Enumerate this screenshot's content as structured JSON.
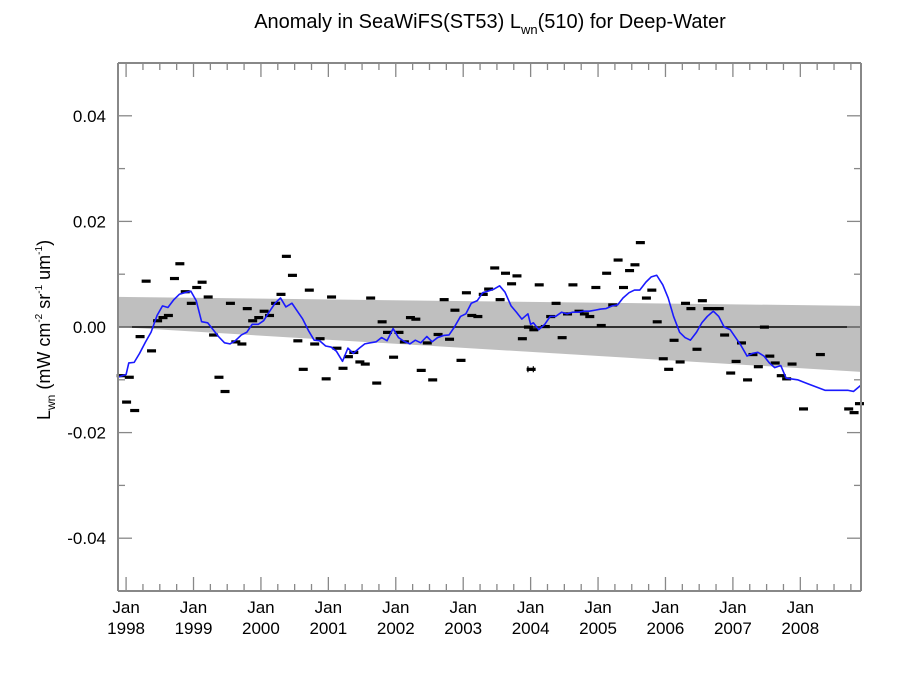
{
  "chart_data": {
    "type": "scatter",
    "title": {
      "prefix": "Anomaly in SeaWiFS(ST53) L",
      "sub": "wn",
      "suffix": "(510) for Deep-Water"
    },
    "ylabel": {
      "prefix": "L",
      "sub": "wn",
      "unit": " (mW cm",
      "sup1": "-2",
      "mid": " sr",
      "sup2": "-1",
      "mid2": " um",
      "sup3": "-1",
      "end": ")"
    },
    "xlabel": "",
    "xlim": [
      1997.88,
      2008.9
    ],
    "ylim": [
      -0.05,
      0.05
    ],
    "grid": false,
    "y_ticks": [
      {
        "value": 0.04,
        "label": "0.04"
      },
      {
        "value": 0.02,
        "label": "0.02"
      },
      {
        "value": 0.0,
        "label": "0.00"
      },
      {
        "value": -0.02,
        "label": "-0.02"
      },
      {
        "value": -0.04,
        "label": "-0.04"
      }
    ],
    "x_ticks": [
      {
        "value": 1998,
        "label1": "Jan",
        "label2": "1998"
      },
      {
        "value": 1999,
        "label1": "Jan",
        "label2": "1999"
      },
      {
        "value": 2000,
        "label1": "Jan",
        "label2": "2000"
      },
      {
        "value": 2001,
        "label1": "Jan",
        "label2": "2001"
      },
      {
        "value": 2002,
        "label1": "Jan",
        "label2": "2002"
      },
      {
        "value": 2003,
        "label1": "Jan",
        "label2": "2003"
      },
      {
        "value": 2004,
        "label1": "Jan",
        "label2": "2004"
      },
      {
        "value": 2005,
        "label1": "Jan",
        "label2": "2005"
      },
      {
        "value": 2006,
        "label1": "Jan",
        "label2": "2006"
      },
      {
        "value": 2007,
        "label1": "Jan",
        "label2": "2007"
      },
      {
        "value": 2008,
        "label1": "Jan",
        "label2": "2008"
      }
    ],
    "zero_line": 0.0,
    "trend_band": {
      "x": [
        1997.88,
        2008.9
      ],
      "upper": [
        0.0057,
        0.004
      ],
      "lower": [
        0.0,
        -0.0085
      ],
      "color": "#bfbfbf"
    },
    "series": [
      {
        "name": "monthly anomaly",
        "marker": "dash",
        "color": "#000000",
        "points": [
          [
            1997.92,
            -0.0092
          ],
          [
            1998.0,
            -0.0142
          ],
          [
            1998.04,
            -0.0095
          ],
          [
            1998.12,
            -0.0158
          ],
          [
            1998.2,
            -0.0018
          ],
          [
            1998.29,
            0.0087
          ],
          [
            1998.37,
            -0.0045
          ],
          [
            1998.46,
            0.0012
          ],
          [
            1998.54,
            0.0018
          ],
          [
            1998.62,
            0.0022
          ],
          [
            1998.71,
            0.0092
          ],
          [
            1998.79,
            0.012
          ],
          [
            1998.87,
            0.0067
          ],
          [
            1998.96,
            0.0045
          ],
          [
            1999.04,
            0.0075
          ],
          [
            1999.12,
            0.0085
          ],
          [
            1999.21,
            0.0057
          ],
          [
            1999.29,
            -0.0015
          ],
          [
            1999.37,
            -0.0095
          ],
          [
            1999.46,
            -0.0122
          ],
          [
            1999.54,
            0.0045
          ],
          [
            1999.62,
            -0.0028
          ],
          [
            1999.71,
            -0.0032
          ],
          [
            1999.79,
            0.0035
          ],
          [
            1999.87,
            0.0012
          ],
          [
            1999.96,
            0.0018
          ],
          [
            2000.04,
            0.003
          ],
          [
            2000.12,
            0.0022
          ],
          [
            2000.21,
            0.0045
          ],
          [
            2000.29,
            0.0062
          ],
          [
            2000.37,
            0.0134
          ],
          [
            2000.46,
            0.0098
          ],
          [
            2000.54,
            -0.0026
          ],
          [
            2000.62,
            -0.008
          ],
          [
            2000.71,
            0.007
          ],
          [
            2000.79,
            -0.0032
          ],
          [
            2000.87,
            -0.0022
          ],
          [
            2000.96,
            -0.0098
          ],
          [
            2001.04,
            0.0057
          ],
          [
            2001.12,
            -0.004
          ],
          [
            2001.21,
            -0.0078
          ],
          [
            2001.29,
            -0.0056
          ],
          [
            2001.37,
            -0.0048
          ],
          [
            2001.46,
            -0.0066
          ],
          [
            2001.54,
            -0.007
          ],
          [
            2001.62,
            0.0055
          ],
          [
            2001.71,
            -0.0106
          ],
          [
            2001.79,
            0.001
          ],
          [
            2001.87,
            -0.001
          ],
          [
            2001.96,
            -0.0057
          ],
          [
            2002.04,
            -0.001
          ],
          [
            2002.12,
            -0.0028
          ],
          [
            2002.21,
            0.0018
          ],
          [
            2002.29,
            0.0015
          ],
          [
            2002.37,
            -0.0082
          ],
          [
            2002.46,
            -0.003
          ],
          [
            2002.54,
            -0.01
          ],
          [
            2002.62,
            -0.0014
          ],
          [
            2002.71,
            0.0052
          ],
          [
            2002.79,
            -0.0023
          ],
          [
            2002.87,
            0.0032
          ],
          [
            2002.96,
            -0.0063
          ],
          [
            2003.04,
            0.0065
          ],
          [
            2003.12,
            0.0022
          ],
          [
            2003.21,
            0.002
          ],
          [
            2003.29,
            0.0062
          ],
          [
            2003.37,
            0.0072
          ],
          [
            2003.46,
            0.0112
          ],
          [
            2003.54,
            0.0052
          ],
          [
            2003.62,
            0.0102
          ],
          [
            2003.71,
            0.0082
          ],
          [
            2003.79,
            0.0097
          ],
          [
            2003.87,
            -0.0022
          ],
          [
            2003.96,
            0.0
          ],
          [
            2004.0,
            -0.008
          ],
          [
            2004.04,
            -0.0005
          ],
          [
            2004.12,
            0.008
          ],
          [
            2004.21,
            0.0001
          ],
          [
            2004.29,
            0.002
          ],
          [
            2004.37,
            0.0045
          ],
          [
            2004.46,
            -0.002
          ],
          [
            2004.54,
            0.0025
          ],
          [
            2004.62,
            0.008
          ],
          [
            2004.71,
            0.003
          ],
          [
            2004.79,
            0.0025
          ],
          [
            2004.87,
            0.002
          ],
          [
            2004.96,
            0.0075
          ],
          [
            2005.04,
            0.0003
          ],
          [
            2005.12,
            0.0102
          ],
          [
            2005.21,
            0.0042
          ],
          [
            2005.29,
            0.0127
          ],
          [
            2005.37,
            0.0075
          ],
          [
            2005.46,
            0.0107
          ],
          [
            2005.54,
            0.0118
          ],
          [
            2005.62,
            0.016
          ],
          [
            2005.71,
            0.0055
          ],
          [
            2005.79,
            0.007
          ],
          [
            2005.87,
            0.001
          ],
          [
            2005.96,
            -0.006
          ],
          [
            2006.04,
            -0.008
          ],
          [
            2006.12,
            -0.0025
          ],
          [
            2006.21,
            -0.0066
          ],
          [
            2006.29,
            0.0045
          ],
          [
            2006.37,
            0.0035
          ],
          [
            2006.46,
            -0.0042
          ],
          [
            2006.54,
            0.005
          ],
          [
            2006.62,
            0.0035
          ],
          [
            2006.71,
            0.0035
          ],
          [
            2006.79,
            0.0035
          ],
          [
            2006.87,
            -0.0015
          ],
          [
            2006.96,
            -0.0087
          ],
          [
            2007.04,
            -0.0065
          ],
          [
            2007.12,
            -0.003
          ],
          [
            2007.21,
            -0.01
          ],
          [
            2007.29,
            -0.0052
          ],
          [
            2007.37,
            -0.0075
          ],
          [
            2007.46,
            0.0
          ],
          [
            2007.54,
            -0.0055
          ],
          [
            2007.62,
            -0.0068
          ],
          [
            2007.71,
            -0.0092
          ],
          [
            2007.79,
            -0.0098
          ],
          [
            2007.87,
            -0.007
          ],
          [
            2008.04,
            -0.0155
          ],
          [
            2008.29,
            -0.0052
          ],
          [
            2008.71,
            -0.0155
          ],
          [
            2008.79,
            -0.0162
          ],
          [
            2008.87,
            -0.0145
          ]
        ]
      },
      {
        "name": "running mean",
        "marker": "line",
        "color": "#1a1aff",
        "points": [
          [
            1997.88,
            -0.0095
          ],
          [
            1998.0,
            -0.009
          ],
          [
            1998.04,
            -0.0068
          ],
          [
            1998.12,
            -0.0067
          ],
          [
            1998.2,
            -0.005
          ],
          [
            1998.29,
            -0.0028
          ],
          [
            1998.37,
            -0.001
          ],
          [
            1998.46,
            0.0022
          ],
          [
            1998.54,
            0.004
          ],
          [
            1998.62,
            0.0037
          ],
          [
            1998.71,
            0.0052
          ],
          [
            1998.79,
            0.0062
          ],
          [
            1998.87,
            0.0065
          ],
          [
            1998.96,
            0.0068
          ],
          [
            1999.04,
            0.005
          ],
          [
            1999.12,
            0.001
          ],
          [
            1999.21,
            0.0008
          ],
          [
            1999.29,
            -0.0005
          ],
          [
            1999.37,
            -0.0018
          ],
          [
            1999.46,
            -0.003
          ],
          [
            1999.54,
            -0.0032
          ],
          [
            1999.62,
            -0.0026
          ],
          [
            1999.71,
            -0.0015
          ],
          [
            1999.79,
            -0.001
          ],
          [
            1999.87,
            0.0005
          ],
          [
            1999.96,
            0.0005
          ],
          [
            2000.04,
            0.0012
          ],
          [
            2000.12,
            0.0028
          ],
          [
            2000.21,
            0.0045
          ],
          [
            2000.29,
            0.0055
          ],
          [
            2000.37,
            0.0038
          ],
          [
            2000.46,
            0.0045
          ],
          [
            2000.54,
            0.003
          ],
          [
            2000.62,
            0.0015
          ],
          [
            2000.71,
            -0.0008
          ],
          [
            2000.79,
            -0.0025
          ],
          [
            2000.87,
            -0.0026
          ],
          [
            2000.96,
            -0.0036
          ],
          [
            2001.04,
            -0.0038
          ],
          [
            2001.12,
            -0.0046
          ],
          [
            2001.21,
            -0.0065
          ],
          [
            2001.29,
            -0.004
          ],
          [
            2001.37,
            -0.005
          ],
          [
            2001.46,
            -0.004
          ],
          [
            2001.54,
            -0.0032
          ],
          [
            2001.62,
            -0.003
          ],
          [
            2001.71,
            -0.0028
          ],
          [
            2001.79,
            -0.002
          ],
          [
            2001.87,
            -0.0026
          ],
          [
            2001.96,
            -0.0003
          ],
          [
            2002.04,
            -0.002
          ],
          [
            2002.12,
            -0.0027
          ],
          [
            2002.21,
            -0.0032
          ],
          [
            2002.29,
            -0.0025
          ],
          [
            2002.37,
            -0.003
          ],
          [
            2002.46,
            -0.0018
          ],
          [
            2002.54,
            -0.0028
          ],
          [
            2002.62,
            -0.002
          ],
          [
            2002.71,
            -0.0016
          ],
          [
            2002.79,
            -0.0015
          ],
          [
            2002.87,
            0.0
          ],
          [
            2002.96,
            0.002
          ],
          [
            2003.04,
            0.0025
          ],
          [
            2003.12,
            0.0045
          ],
          [
            2003.21,
            0.005
          ],
          [
            2003.29,
            0.0065
          ],
          [
            2003.37,
            0.0068
          ],
          [
            2003.46,
            0.0072
          ],
          [
            2003.54,
            0.0078
          ],
          [
            2003.62,
            0.0066
          ],
          [
            2003.71,
            0.004
          ],
          [
            2003.79,
            0.0028
          ],
          [
            2003.87,
            0.0015
          ],
          [
            2003.96,
            0.0025
          ],
          [
            2004.0,
            0.0005
          ],
          [
            2004.04,
            0.0008
          ],
          [
            2004.12,
            -0.0005
          ],
          [
            2004.21,
            0.0005
          ],
          [
            2004.29,
            0.002
          ],
          [
            2004.37,
            0.002
          ],
          [
            2004.46,
            0.0028
          ],
          [
            2004.54,
            0.0025
          ],
          [
            2004.62,
            0.0028
          ],
          [
            2004.71,
            0.0028
          ],
          [
            2004.79,
            0.003
          ],
          [
            2004.87,
            0.003
          ],
          [
            2004.96,
            0.0032
          ],
          [
            2005.04,
            0.0034
          ],
          [
            2005.12,
            0.0035
          ],
          [
            2005.21,
            0.004
          ],
          [
            2005.29,
            0.0042
          ],
          [
            2005.37,
            0.0055
          ],
          [
            2005.46,
            0.0065
          ],
          [
            2005.54,
            0.007
          ],
          [
            2005.62,
            0.007
          ],
          [
            2005.71,
            0.0085
          ],
          [
            2005.79,
            0.0095
          ],
          [
            2005.87,
            0.0098
          ],
          [
            2005.96,
            0.008
          ],
          [
            2006.04,
            0.0055
          ],
          [
            2006.12,
            0.002
          ],
          [
            2006.21,
            -0.001
          ],
          [
            2006.29,
            -0.002
          ],
          [
            2006.37,
            -0.0025
          ],
          [
            2006.46,
            -0.001
          ],
          [
            2006.54,
            0.0008
          ],
          [
            2006.62,
            0.002
          ],
          [
            2006.71,
            0.003
          ],
          [
            2006.79,
            0.002
          ],
          [
            2006.87,
            0.0
          ],
          [
            2006.96,
            -0.0005
          ],
          [
            2007.04,
            -0.002
          ],
          [
            2007.12,
            -0.0035
          ],
          [
            2007.21,
            -0.0055
          ],
          [
            2007.29,
            -0.005
          ],
          [
            2007.37,
            -0.0048
          ],
          [
            2007.46,
            -0.0055
          ],
          [
            2007.54,
            -0.0068
          ],
          [
            2007.62,
            -0.0077
          ],
          [
            2007.71,
            -0.0073
          ],
          [
            2007.79,
            -0.0097
          ],
          [
            2007.96,
            -0.01
          ],
          [
            2008.12,
            -0.0108
          ],
          [
            2008.37,
            -0.012
          ],
          [
            2008.71,
            -0.012
          ],
          [
            2008.79,
            -0.0122
          ],
          [
            2008.9,
            -0.011
          ]
        ]
      }
    ],
    "error_bar_point": {
      "x": 2004.0,
      "y": -0.008,
      "xerr": 0.04
    }
  }
}
